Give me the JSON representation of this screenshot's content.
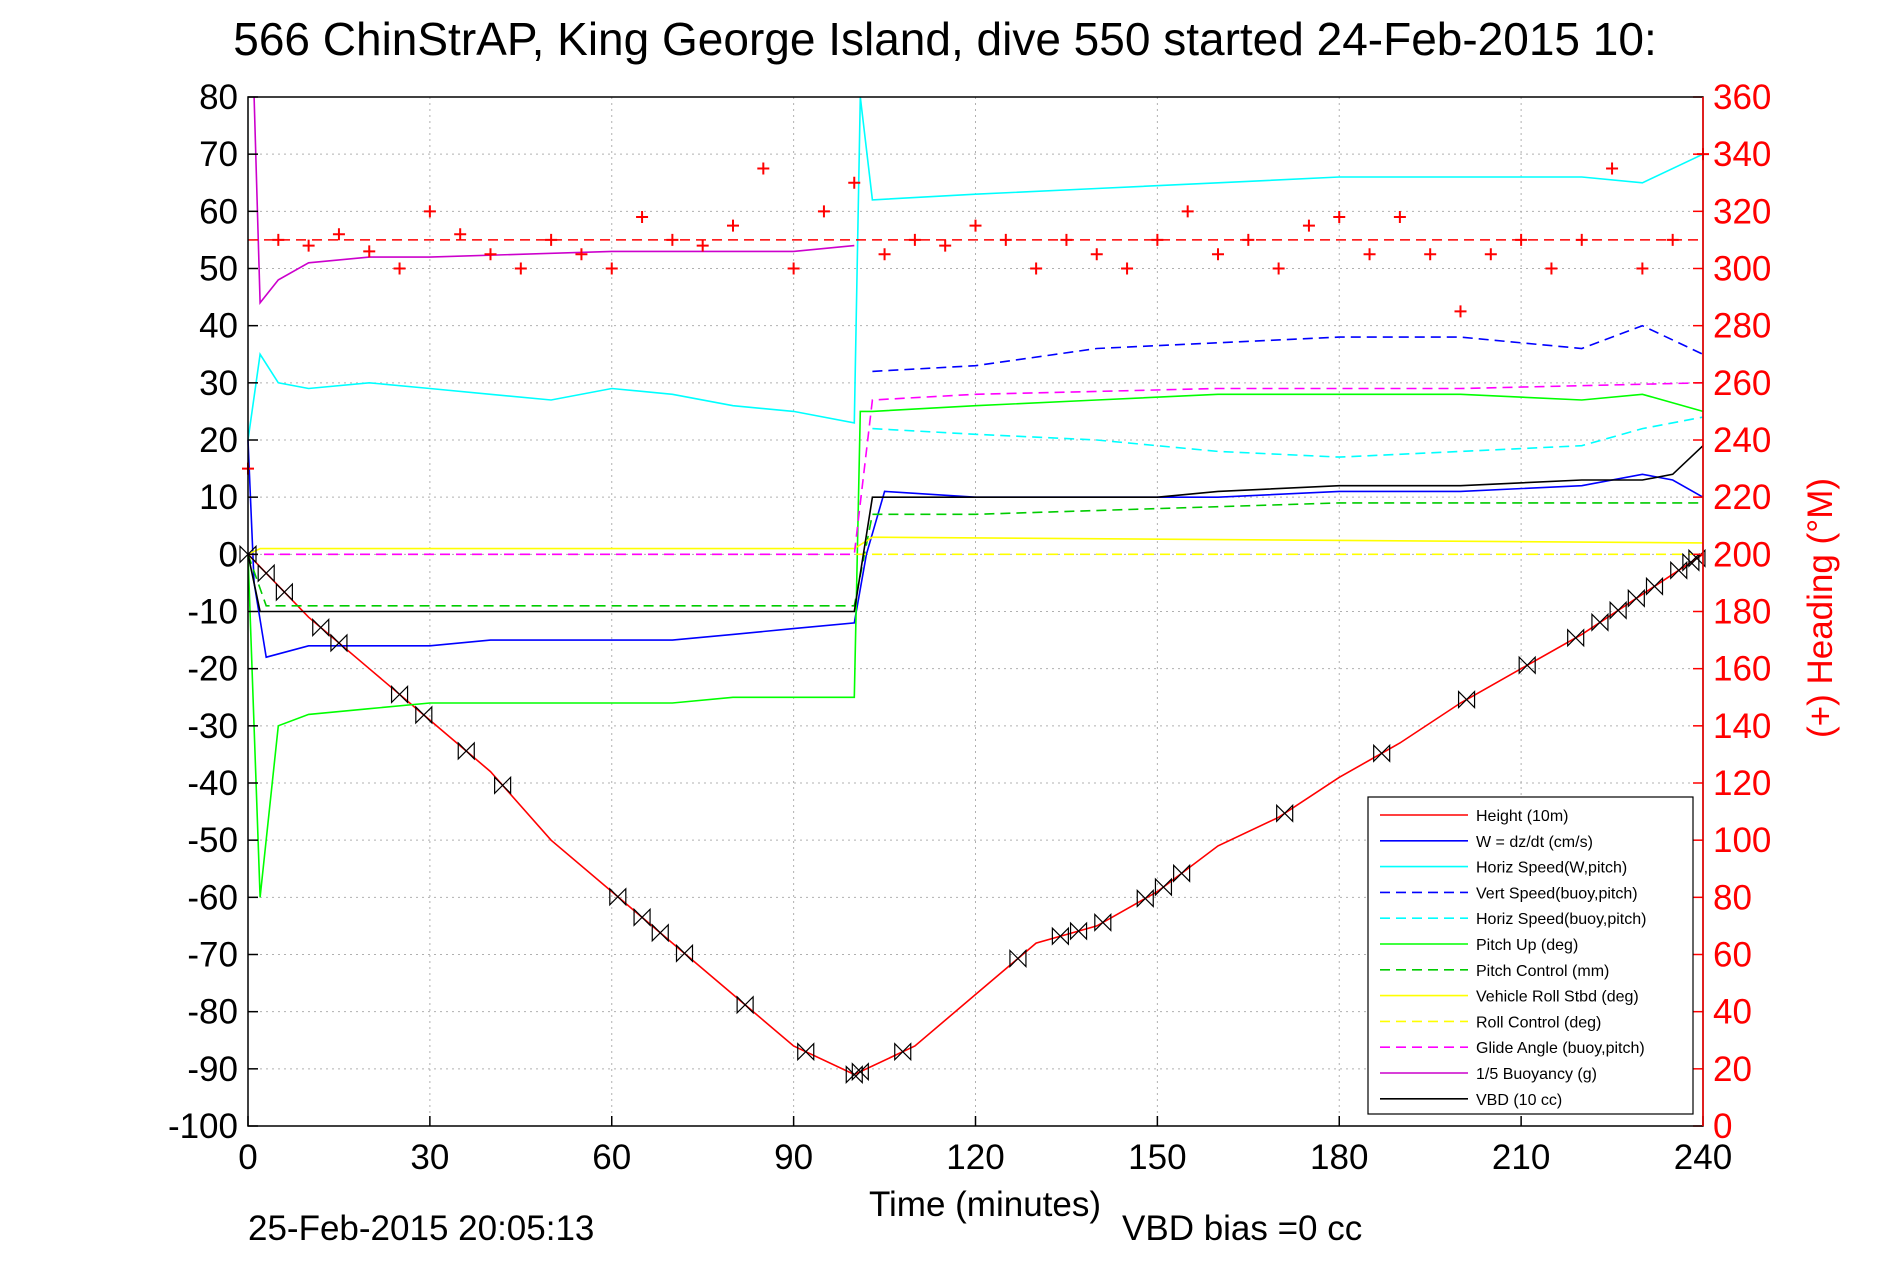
{
  "chart_data": {
    "type": "line",
    "title": "566 ChinStrAP, King George Island, dive 550 started 24-Feb-2015 10:",
    "xlabel": "Time (minutes)",
    "ylabel": "",
    "ylabel_right": "(+) Heading (°M)",
    "xlim": [
      0,
      240
    ],
    "ylim": [
      -100,
      80
    ],
    "ylim_right": [
      0,
      360
    ],
    "xticks": [
      "0",
      "30",
      "60",
      "90",
      "120",
      "150",
      "180",
      "210",
      "240"
    ],
    "yticks": [
      "80",
      "70",
      "60",
      "50",
      "40",
      "30",
      "20",
      "10",
      "0",
      "-10",
      "-20",
      "-30",
      "-40",
      "-50",
      "-60",
      "-70",
      "-80",
      "-90",
      "-100"
    ],
    "yticks_right": [
      "360",
      "340",
      "320",
      "300",
      "280",
      "260",
      "240",
      "220",
      "200",
      "180",
      "160",
      "140",
      "120",
      "100",
      "80",
      "60",
      "40",
      "20",
      "0"
    ],
    "grid": true,
    "legend_position": "bottom-right",
    "footer_left": "25-Feb-2015 20:05:13",
    "footer_right": "VBD bias =0 cc",
    "colors": {
      "height": "#ff0000",
      "w": "#0000ff",
      "horiz": "#00ffff",
      "vert_buoy": "#0000ff",
      "horiz_buoy": "#00ffff",
      "pitch": "#00ff00",
      "pitch_ctrl": "#00cc00",
      "roll": "#ffff00",
      "roll_ctrl": "#ffff00",
      "glide": "#ff00ff",
      "buoy": "#cc00cc",
      "vbd": "#000000",
      "heading": "#ff0000",
      "axis_right": "#ff0000"
    },
    "series": [
      {
        "name": "Height (10m)",
        "key": "height",
        "style": "solid",
        "x": [
          0,
          10,
          20,
          30,
          40,
          50,
          60,
          70,
          80,
          90,
          100,
          110,
          120,
          130,
          140,
          150,
          160,
          170,
          180,
          190,
          200,
          210,
          220,
          230,
          240
        ],
        "y": [
          0,
          -11,
          -20,
          -29,
          -38,
          -50,
          -59,
          -68,
          -77,
          -86,
          -91,
          -86,
          -77,
          -68,
          -65,
          -59,
          -51,
          -46,
          -39,
          -33,
          -26,
          -20,
          -14,
          -7,
          0
        ]
      },
      {
        "name": "W = dz/dt (cm/s)",
        "key": "w",
        "style": "solid",
        "x": [
          0,
          1,
          3,
          10,
          20,
          30,
          40,
          50,
          60,
          70,
          80,
          90,
          100,
          102,
          105,
          120,
          140,
          160,
          180,
          200,
          220,
          230,
          235,
          240
        ],
        "y": [
          20,
          -5,
          -18,
          -16,
          -16,
          -16,
          -15,
          -15,
          -15,
          -15,
          -14,
          -13,
          -12,
          0,
          11,
          10,
          10,
          10,
          11,
          11,
          12,
          14,
          13,
          10
        ]
      },
      {
        "name": "Horiz Speed(W,pitch)",
        "key": "horiz",
        "style": "solid",
        "x": [
          0,
          2,
          5,
          10,
          20,
          30,
          40,
          50,
          60,
          70,
          80,
          90,
          100,
          101,
          103,
          120,
          140,
          160,
          180,
          200,
          220,
          230,
          240
        ],
        "y": [
          20,
          35,
          30,
          29,
          30,
          29,
          28,
          27,
          29,
          28,
          26,
          25,
          23,
          80,
          62,
          63,
          64,
          65,
          66,
          66,
          66,
          65,
          70
        ]
      },
      {
        "name": "Vert Speed(buoy,pitch)",
        "key": "vert_buoy",
        "style": "dashed",
        "x": [
          103,
          120,
          140,
          160,
          180,
          200,
          220,
          230,
          240
        ],
        "y": [
          32,
          33,
          36,
          37,
          38,
          38,
          36,
          40,
          35
        ]
      },
      {
        "name": "Horiz Speed(buoy,pitch)",
        "key": "horiz_buoy",
        "style": "dashed",
        "x": [
          103,
          120,
          140,
          160,
          180,
          200,
          220,
          230,
          240
        ],
        "y": [
          22,
          21,
          20,
          18,
          17,
          18,
          19,
          22,
          24
        ]
      },
      {
        "name": "Pitch Up (deg)",
        "key": "pitch",
        "style": "solid",
        "x": [
          0,
          2,
          5,
          10,
          20,
          30,
          40,
          50,
          60,
          70,
          80,
          90,
          100,
          101,
          103,
          120,
          140,
          160,
          180,
          200,
          220,
          230,
          240
        ],
        "y": [
          0,
          -60,
          -30,
          -28,
          -27,
          -26,
          -26,
          -26,
          -26,
          -26,
          -25,
          -25,
          -25,
          25,
          25,
          26,
          27,
          28,
          28,
          28,
          27,
          28,
          25
        ]
      },
      {
        "name": "Pitch Control (mm)",
        "key": "pitch_ctrl",
        "style": "dashed",
        "x": [
          0,
          3,
          100,
          103,
          120,
          150,
          180,
          210,
          240
        ],
        "y": [
          0,
          -9,
          -9,
          7,
          7,
          8,
          9,
          9,
          9
        ]
      },
      {
        "name": "Vehicle Roll Stbd (deg)",
        "key": "roll",
        "style": "solid",
        "x": [
          0,
          2,
          100,
          103,
          240
        ],
        "y": [
          0,
          1,
          1,
          3,
          2
        ]
      },
      {
        "name": "Roll Control (deg)",
        "key": "roll_ctrl",
        "style": "dashed",
        "x": [
          0,
          240
        ],
        "y": [
          0,
          0
        ]
      },
      {
        "name": "Glide Angle (buoy,pitch)",
        "key": "glide",
        "style": "dashed",
        "x": [
          0,
          100,
          103,
          120,
          160,
          200,
          240
        ],
        "y": [
          0,
          0,
          27,
          28,
          29,
          29,
          30
        ]
      },
      {
        "name": "1/5 Buoyancy (g)",
        "key": "buoy",
        "style": "solid",
        "x": [
          1,
          2,
          5,
          10,
          20,
          30,
          60,
          90,
          100
        ],
        "y": [
          80,
          44,
          48,
          51,
          52,
          52,
          53,
          53,
          54
        ]
      },
      {
        "name": "VBD (10 cc)",
        "key": "vbd",
        "style": "solid",
        "x": [
          0,
          2,
          100,
          103,
          150,
          160,
          180,
          200,
          220,
          230,
          235,
          240
        ],
        "y": [
          0,
          -10,
          -10,
          10,
          10,
          11,
          12,
          12,
          13,
          13,
          14,
          19
        ]
      }
    ],
    "heading": {
      "name": "(+) Heading (°M)",
      "marker": "+",
      "x": [
        0,
        5,
        10,
        15,
        20,
        25,
        30,
        35,
        40,
        45,
        50,
        55,
        60,
        65,
        70,
        75,
        80,
        85,
        90,
        95,
        100,
        105,
        110,
        115,
        120,
        125,
        130,
        135,
        140,
        145,
        150,
        155,
        160,
        165,
        170,
        175,
        180,
        185,
        190,
        195,
        200,
        205,
        210,
        215,
        220,
        225,
        230,
        235,
        240
      ],
      "y": [
        230,
        310,
        308,
        312,
        306,
        300,
        320,
        312,
        305,
        300,
        310,
        305,
        300,
        318,
        310,
        308,
        315,
        335,
        300,
        320,
        330,
        305,
        310,
        308,
        315,
        310,
        300,
        310,
        305,
        300,
        310,
        320,
        305,
        310,
        300,
        315,
        318,
        305,
        318,
        305,
        285,
        305,
        310,
        300,
        310,
        335,
        300,
        310,
        340
      ]
    },
    "heading_ref": 310,
    "depth_markers_x": [
      0,
      3,
      6,
      12,
      15,
      25,
      29,
      36,
      42,
      61,
      65,
      68,
      72,
      82,
      92,
      100,
      101,
      108,
      127,
      134,
      137,
      141,
      148,
      151,
      154,
      171,
      187,
      201,
      211,
      219,
      223,
      226,
      229,
      232,
      236,
      238,
      239
    ]
  }
}
